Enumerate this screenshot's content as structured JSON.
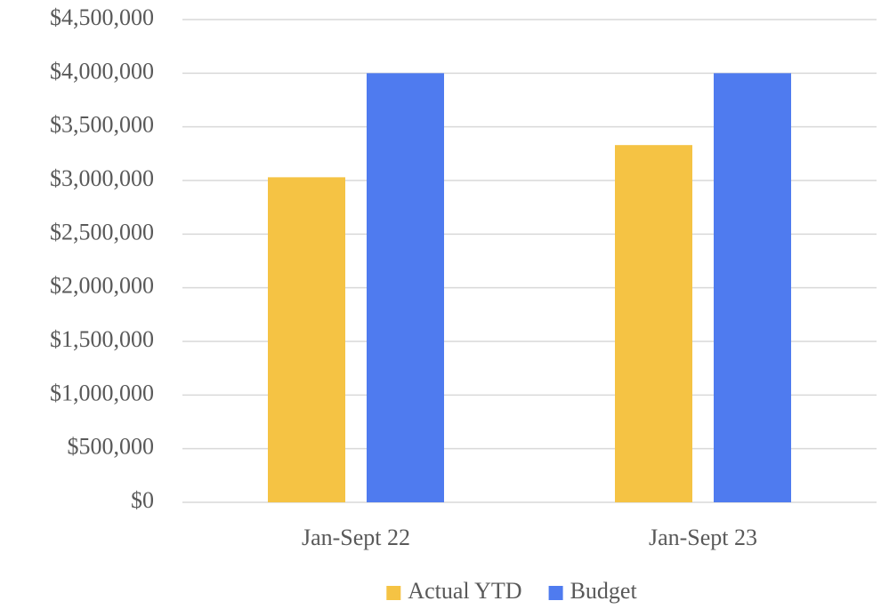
{
  "chart_data": {
    "type": "bar",
    "categories": [
      "Jan-Sept 22",
      "Jan-Sept 23"
    ],
    "series": [
      {
        "name": "Actual YTD",
        "color": "#f5c344",
        "values": [
          3030000,
          3330000
        ]
      },
      {
        "name": "Budget",
        "color": "#4f7bef",
        "values": [
          4000000,
          4000000
        ]
      }
    ],
    "ylim": [
      0,
      4500000
    ],
    "yticks": [
      {
        "value": 0,
        "label": "$0"
      },
      {
        "value": 500000,
        "label": "$500,000"
      },
      {
        "value": 1000000,
        "label": "$1,000,000"
      },
      {
        "value": 1500000,
        "label": "$1,500,000"
      },
      {
        "value": 2000000,
        "label": "$2,000,000"
      },
      {
        "value": 2500000,
        "label": "$2,500,000"
      },
      {
        "value": 3000000,
        "label": "$3,000,000"
      },
      {
        "value": 3500000,
        "label": "$3,500,000"
      },
      {
        "value": 4000000,
        "label": "$4,000,000"
      },
      {
        "value": 4500000,
        "label": "$4,500,000"
      }
    ],
    "grid": true,
    "legend": "bottom"
  }
}
